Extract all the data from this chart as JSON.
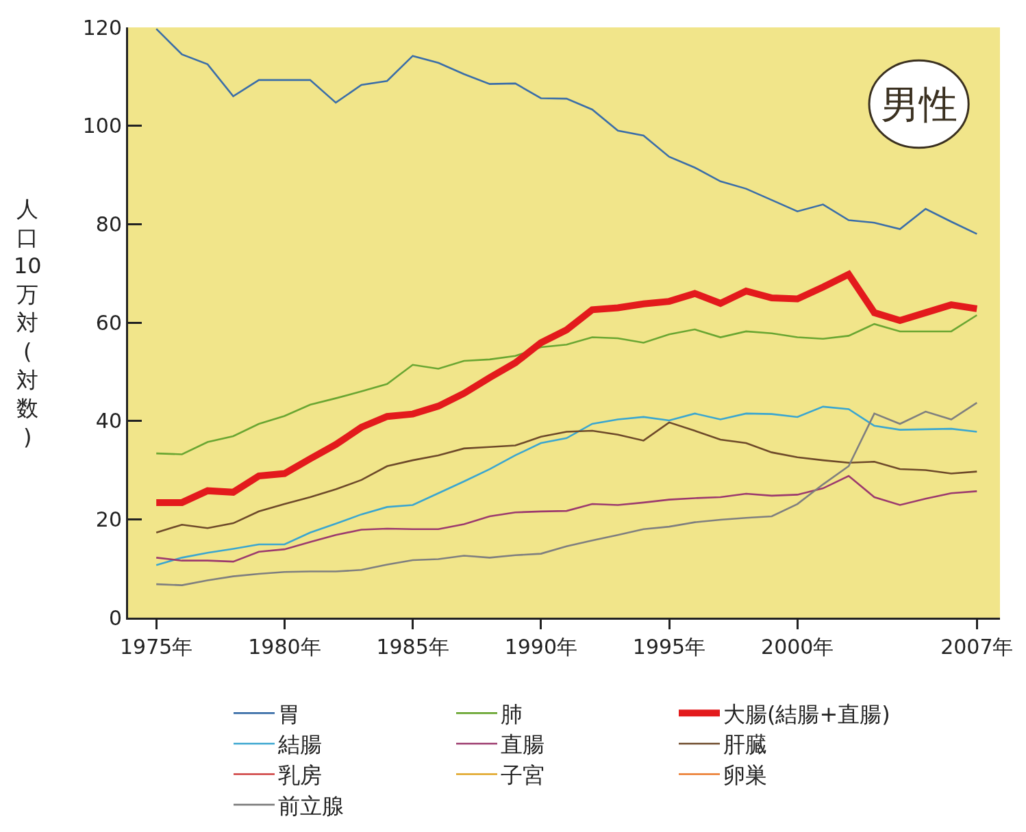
{
  "chart_data": {
    "type": "line",
    "ylabel": "人口10万対(対数)",
    "annotations": [
      "男性"
    ],
    "x": [
      1975,
      1976,
      1977,
      1978,
      1979,
      1980,
      1981,
      1982,
      1983,
      1984,
      1985,
      1986,
      1987,
      1988,
      1989,
      1990,
      1991,
      1992,
      1993,
      1994,
      1995,
      1996,
      1997,
      1998,
      1999,
      2000,
      2001,
      2002,
      2003,
      2004,
      2005,
      2006,
      2007
    ],
    "xlim": [
      1973.9,
      2007.9
    ],
    "xticks": [
      {
        "value": 1975,
        "label": "1975年"
      },
      {
        "value": 1980,
        "label": "1980年"
      },
      {
        "value": 1985,
        "label": "1985年"
      },
      {
        "value": 1990,
        "label": "1990年"
      },
      {
        "value": 1995,
        "label": "1995年"
      },
      {
        "value": 2000,
        "label": "2000年"
      },
      {
        "value": 2007,
        "label": "2007年"
      }
    ],
    "ylim": [
      0,
      120
    ],
    "yticks": [
      0,
      20,
      40,
      60,
      80,
      100,
      120
    ],
    "grid": false,
    "legend": "bottom",
    "marker": "none",
    "line_style": "solid",
    "series": [
      {
        "name": "胃",
        "color": "#3b6ea8",
        "values": [
          119.7,
          114.5,
          112.5,
          106,
          109.3,
          109.3,
          109.3,
          104.7,
          108.3,
          109.1,
          114.2,
          112.8,
          110.5,
          108.5,
          108.6,
          105.6,
          105.5,
          103.3,
          99,
          98,
          93.7,
          91.5,
          88.7,
          87.2,
          84.9,
          82.6,
          84,
          80.8,
          80.3,
          79,
          83.1,
          80.5,
          78
        ]
      },
      {
        "name": "肺",
        "color": "#6aa632",
        "values": [
          33.4,
          33.2,
          35.7,
          36.9,
          39.4,
          41,
          43.3,
          44.6,
          46,
          47.5,
          51.4,
          50.6,
          52.2,
          52.5,
          53.2,
          55,
          55.5,
          57,
          56.8,
          55.9,
          57.6,
          58.6,
          57,
          58.2,
          57.8,
          57,
          56.7,
          57.3,
          59.7,
          58.2,
          58.2,
          58.2,
          61.5
        ]
      },
      {
        "name": "大腸(結腸+直腸)",
        "color": "#e31a1c",
        "values": [
          23.4,
          23.4,
          25.8,
          25.5,
          28.8,
          29.3,
          32.3,
          35.2,
          38.7,
          40.9,
          41.4,
          43,
          45.6,
          48.8,
          51.8,
          55.9,
          58.5,
          62.6,
          63,
          63.8,
          64.3,
          65.9,
          63.9,
          66.4,
          65,
          64.8,
          67.2,
          69.8,
          62,
          60.4,
          62,
          63.6,
          62.8
        ]
      },
      {
        "name": "結腸",
        "color": "#3aa6d0",
        "values": [
          10.7,
          12.2,
          13.2,
          14,
          14.9,
          14.9,
          17.3,
          19.1,
          21,
          22.5,
          22.9,
          25.3,
          27.7,
          30.2,
          33,
          35.5,
          36.5,
          39.4,
          40.3,
          40.8,
          40.1,
          41.5,
          40.3,
          41.5,
          41.4,
          40.8,
          42.9,
          42.4,
          39,
          38.2,
          38.3,
          38.4,
          37.8
        ]
      },
      {
        "name": "直腸",
        "color": "#9c3a6e",
        "values": [
          12.2,
          11.6,
          11.6,
          11.4,
          13.4,
          13.9,
          15.4,
          16.8,
          17.9,
          18.1,
          18,
          18,
          19,
          20.6,
          21.4,
          21.6,
          21.7,
          23.1,
          22.9,
          23.4,
          24,
          24.3,
          24.5,
          25.2,
          24.8,
          25,
          26.3,
          28.8,
          24.5,
          22.9,
          24.2,
          25.3,
          25.7
        ]
      },
      {
        "name": "肝臓",
        "color": "#6e4a2a",
        "values": [
          17.3,
          18.9,
          18.2,
          19.2,
          21.6,
          23.1,
          24.5,
          26.1,
          28,
          30.8,
          32,
          33,
          34.4,
          34.7,
          35,
          36.8,
          37.8,
          38,
          37.2,
          36,
          39.7,
          38,
          36.2,
          35.5,
          33.6,
          32.6,
          32,
          31.5,
          31.7,
          30.2,
          30,
          29.3,
          29.7
        ]
      },
      {
        "name": "乳房",
        "color": "#cf4040",
        "values": [
          null,
          null,
          null,
          null,
          null,
          null,
          null,
          null,
          null,
          null,
          null,
          null,
          null,
          null,
          null,
          null,
          null,
          null,
          null,
          null,
          null,
          null,
          null,
          null,
          null,
          null,
          null,
          null,
          null,
          null,
          null,
          null,
          null
        ]
      },
      {
        "name": "子宮",
        "color": "#e0a424",
        "values": [
          null,
          null,
          null,
          null,
          null,
          null,
          null,
          null,
          null,
          null,
          null,
          null,
          null,
          null,
          null,
          null,
          null,
          null,
          null,
          null,
          null,
          null,
          null,
          null,
          null,
          null,
          null,
          null,
          null,
          null,
          null,
          null,
          null
        ]
      },
      {
        "name": "卵巣",
        "color": "#ea7a2c",
        "values": [
          null,
          null,
          null,
          null,
          null,
          null,
          null,
          null,
          null,
          null,
          null,
          null,
          null,
          null,
          null,
          null,
          null,
          null,
          null,
          null,
          null,
          null,
          null,
          null,
          null,
          null,
          null,
          null,
          null,
          null,
          null,
          null,
          null
        ]
      },
      {
        "name": "前立腺",
        "color": "#7f7f7f",
        "values": [
          6.8,
          6.6,
          7.6,
          8.4,
          8.9,
          9.3,
          9.4,
          9.4,
          9.7,
          10.8,
          11.7,
          11.9,
          12.6,
          12.2,
          12.7,
          13,
          14.5,
          15.7,
          16.8,
          18,
          18.5,
          19.4,
          19.9,
          20.3,
          20.6,
          23.1,
          27.1,
          30.8,
          41.5,
          39.4,
          41.9,
          40.3,
          43.7
        ]
      }
    ]
  }
}
